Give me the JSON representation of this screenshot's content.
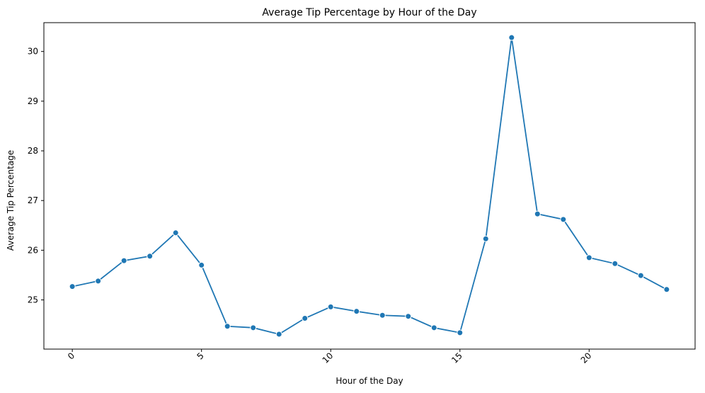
{
  "chart_data": {
    "type": "line",
    "title": "Average Tip Percentage by Hour of the Day",
    "xlabel": "Hour of the Day",
    "ylabel": "Average Tip Percentage",
    "x": [
      0,
      1,
      2,
      3,
      4,
      5,
      6,
      7,
      8,
      9,
      10,
      11,
      12,
      13,
      14,
      15,
      16,
      17,
      18,
      19,
      20,
      21,
      22,
      23
    ],
    "series": [
      {
        "values": [
          25.27,
          25.38,
          25.79,
          25.88,
          26.35,
          25.7,
          24.47,
          24.44,
          24.31,
          24.63,
          24.86,
          24.77,
          24.69,
          24.67,
          24.44,
          24.34,
          26.23,
          30.28,
          26.73,
          26.62,
          25.85,
          25.73,
          25.49,
          25.21
        ]
      }
    ],
    "xticks": [
      0,
      5,
      10,
      15,
      20
    ],
    "xtick_labels": [
      "0",
      "5",
      "10",
      "15",
      "20"
    ],
    "yticks": [
      25,
      26,
      27,
      28,
      29,
      30
    ],
    "ytick_labels": [
      "25",
      "26",
      "27",
      "28",
      "29",
      "30"
    ],
    "xlim": [
      -1.1,
      24.1
    ],
    "ylim": [
      24.01,
      30.58
    ],
    "grid": false,
    "line_color": "#1f77b4",
    "marker": "circle",
    "xtick_rotation": 45
  }
}
